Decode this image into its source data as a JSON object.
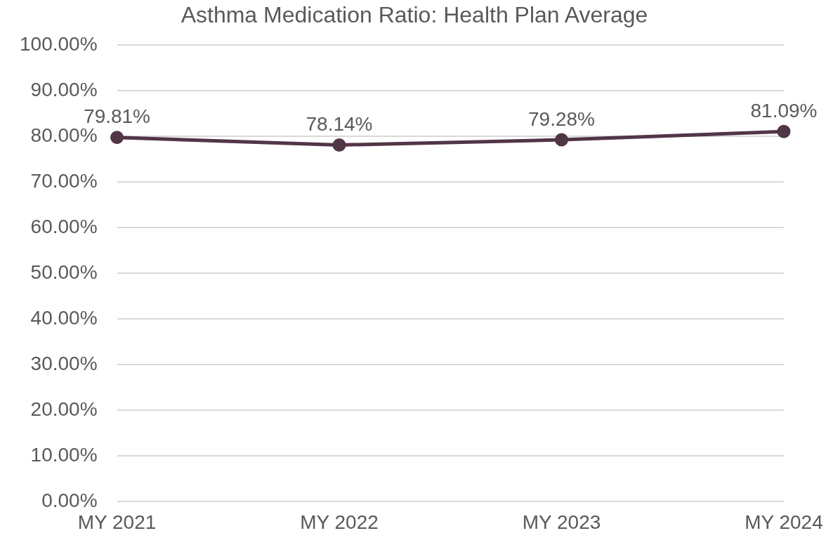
{
  "chart_data": {
    "type": "line",
    "title": "Asthma Medication Ratio: Health Plan Average",
    "categories": [
      "MY 2021",
      "MY 2022",
      "MY 2023",
      "MY 2024"
    ],
    "series": [
      {
        "color": "#513647",
        "values": [
          79.81,
          78.14,
          79.28,
          81.09
        ],
        "value_labels": [
          "79.81%",
          "78.14%",
          "79.28%",
          "81.09%"
        ]
      }
    ],
    "ylim": [
      0,
      100
    ],
    "yticks": [
      {
        "value": 0,
        "label": "0.00%"
      },
      {
        "value": 10,
        "label": "10.00%"
      },
      {
        "value": 20,
        "label": "20.00%"
      },
      {
        "value": 30,
        "label": "30.00%"
      },
      {
        "value": 40,
        "label": "40.00%"
      },
      {
        "value": 50,
        "label": "50.00%"
      },
      {
        "value": 60,
        "label": "60.00%"
      },
      {
        "value": 70,
        "label": "70.00%"
      },
      {
        "value": 80,
        "label": "80.00%"
      },
      {
        "value": 90,
        "label": "90.00%"
      },
      {
        "value": 100,
        "label": "100.00%"
      }
    ],
    "grid": "y",
    "marker": "circle",
    "line_style": "solid",
    "legend": false
  }
}
